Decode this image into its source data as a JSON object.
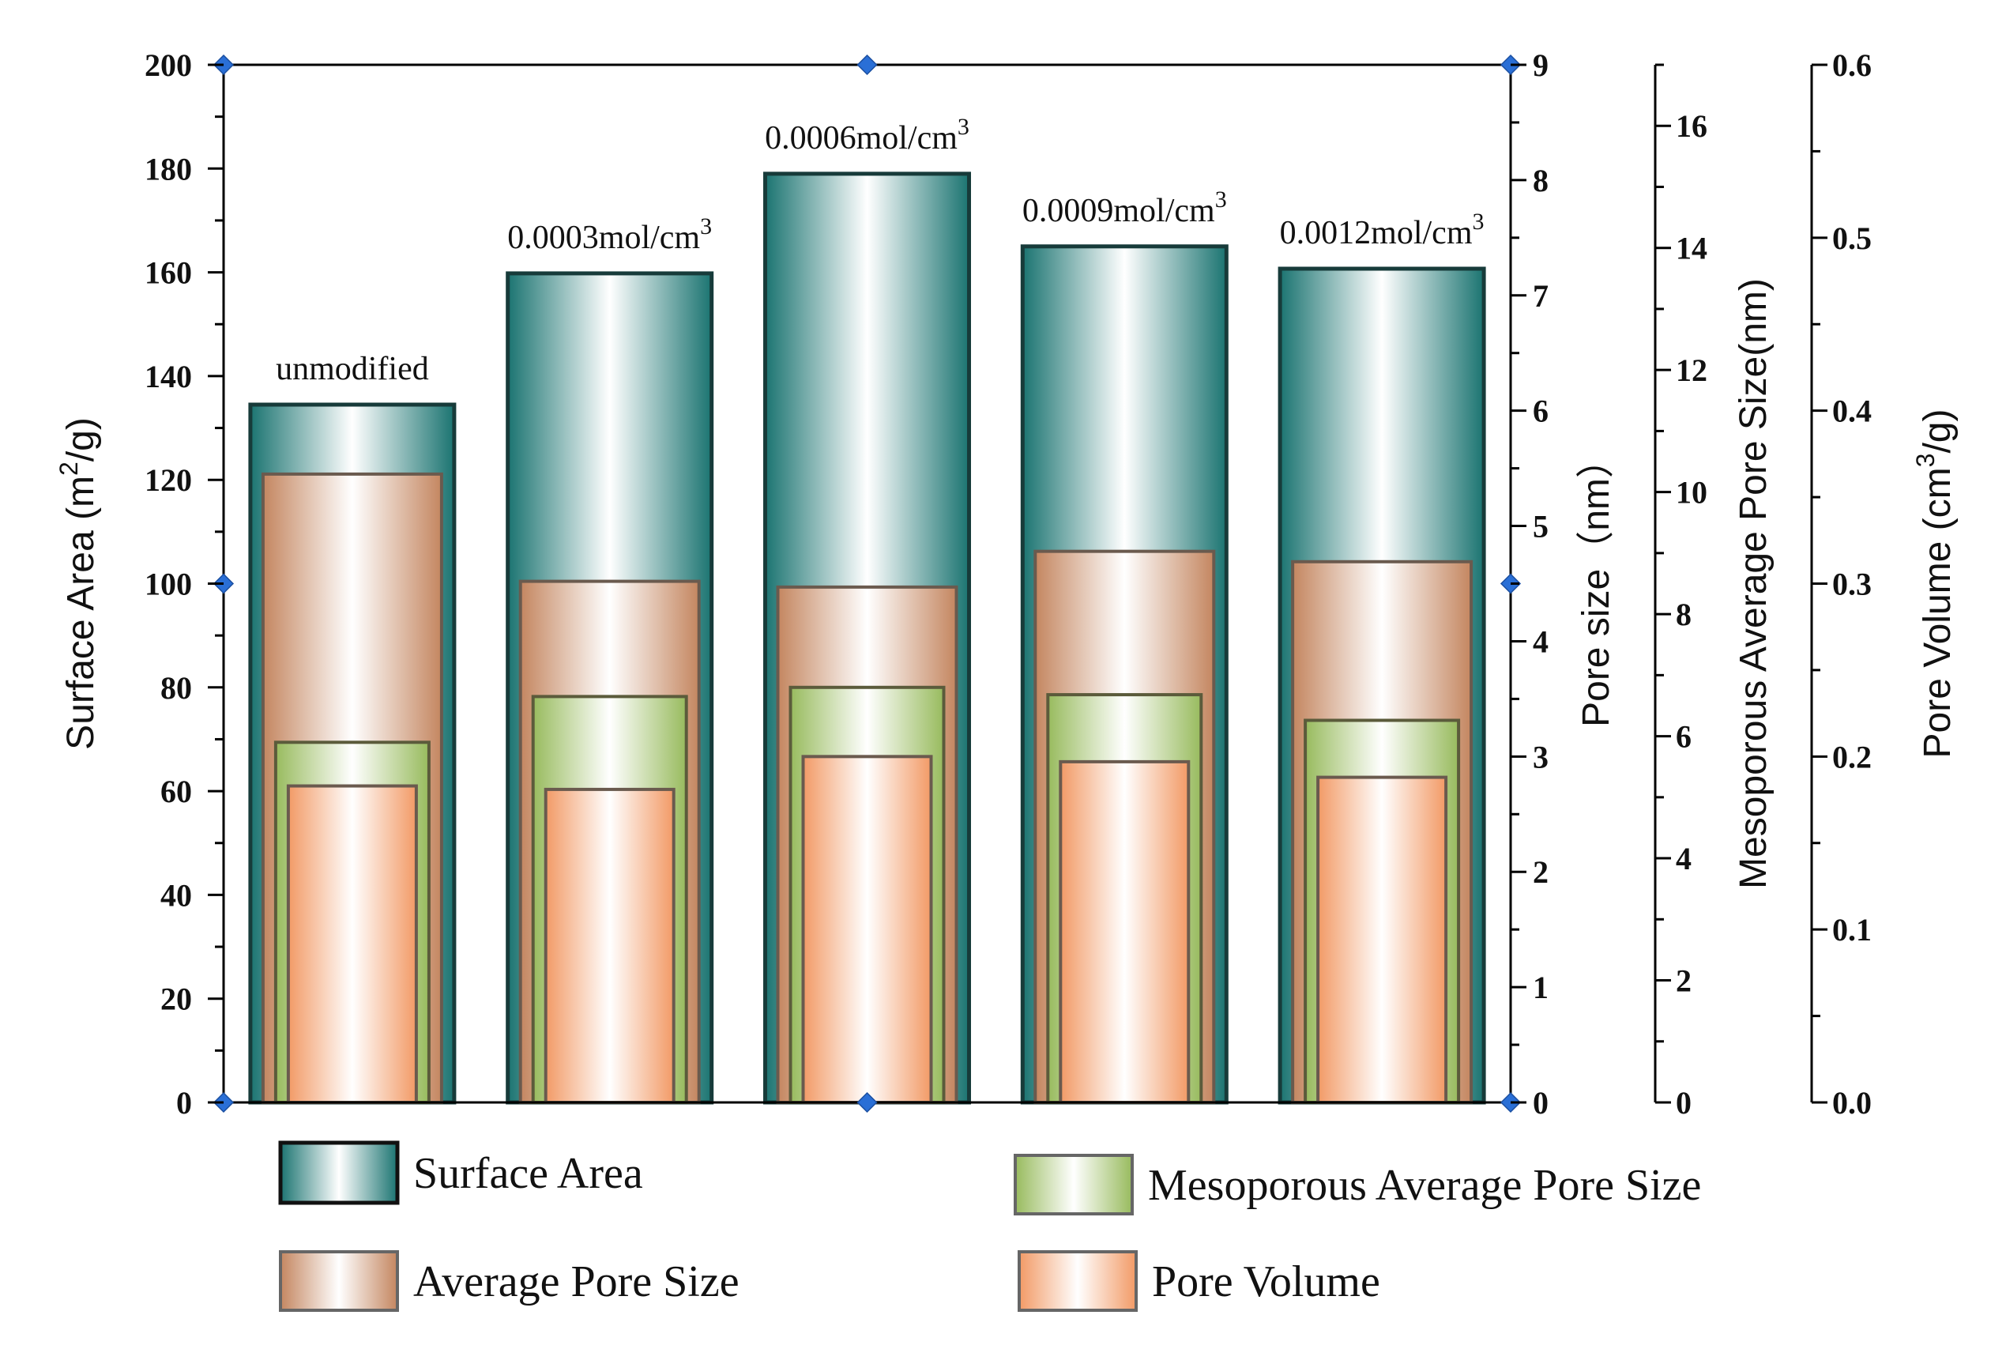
{
  "chart_data": {
    "type": "bar",
    "categories": [
      "unmodified",
      "0.0003mol/cm3",
      "0.0006mol/cm3",
      "0.0009mol/cm3",
      "0.0012mol/cm3"
    ],
    "bar_labels": [
      {
        "text": "unmodified",
        "sup": ""
      },
      {
        "text": "0.0003mol/cm",
        "sup": "3"
      },
      {
        "text": "0.0006mol/cm",
        "sup": "3"
      },
      {
        "text": "0.0009mol/cm",
        "sup": "3"
      },
      {
        "text": "0.0012mol/cm",
        "sup": "3"
      }
    ],
    "series": [
      {
        "name": "Surface Area",
        "axis": "left",
        "values": [
          134.5,
          159.8,
          179,
          165,
          160.7
        ]
      },
      {
        "name": "Average Pore Size",
        "axis": "right1",
        "values": [
          5.45,
          4.52,
          4.47,
          4.78,
          4.69
        ]
      },
      {
        "name": "Mesoporous Average Pore Size",
        "axis": "right2",
        "values": [
          5.9,
          6.65,
          6.8,
          6.68,
          6.26
        ]
      },
      {
        "name": "Pore Volume",
        "axis": "right3",
        "values": [
          0.183,
          0.181,
          0.2,
          0.197,
          0.188
        ]
      }
    ],
    "axes": {
      "left": {
        "title": "Surface Area (m2/g)",
        "title_text": "Surface Area (m",
        "title_sup": "2",
        "title_end": "/g)",
        "ylim": [
          0,
          200
        ],
        "ticks": [
          "0",
          "20",
          "40",
          "60",
          "80",
          "100",
          "120",
          "140",
          "160",
          "180",
          "200"
        ]
      },
      "right1": {
        "title": "Pore size（nm）",
        "ylim": [
          0,
          9
        ],
        "ticks": [
          "0",
          "1",
          "2",
          "3",
          "4",
          "5",
          "6",
          "7",
          "8",
          "9"
        ]
      },
      "right2": {
        "title": "Mesoporous Average Pore Size(nm)",
        "ylim": [
          0,
          17
        ],
        "ticks": [
          "0",
          "2",
          "4",
          "6",
          "8",
          "10",
          "12",
          "14",
          "16"
        ],
        "tick_values": [
          0,
          2,
          4,
          6,
          8,
          10,
          12,
          14,
          16
        ]
      },
      "right3": {
        "title": "Pore Volume (cm3/g)",
        "title_text": "Pore Volume (cm",
        "title_sup": "3",
        "title_end": "/g)",
        "ylim": [
          0,
          0.6
        ],
        "ticks": [
          "0.0",
          "0.1",
          "0.2",
          "0.3",
          "0.4",
          "0.5",
          "0.6"
        ]
      }
    },
    "legend": [
      "Surface Area",
      "Mesoporous Average Pore Size",
      "Average Pore Size",
      "Pore   Volume"
    ],
    "legend_position": "bottom",
    "colors": {
      "surface": "#1f7a78",
      "average": "#c98b63",
      "meso": "#9fbf6a",
      "volume": "#f0a070",
      "marker": "#2a6fd6"
    }
  }
}
